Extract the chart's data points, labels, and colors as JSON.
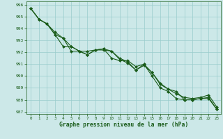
{
  "x": [
    0,
    1,
    2,
    3,
    4,
    5,
    6,
    7,
    8,
    9,
    10,
    11,
    12,
    13,
    14,
    15,
    16,
    17,
    18,
    19,
    20,
    21,
    22,
    23
  ],
  "series1": [
    995.7,
    994.8,
    994.4,
    993.5,
    992.5,
    992.5,
    992.1,
    991.8,
    992.2,
    992.2,
    992.1,
    991.4,
    991.1,
    990.5,
    991.0,
    990.3,
    989.3,
    988.9,
    988.7,
    988.0,
    988.0,
    988.1,
    988.1,
    987.2
  ],
  "series2": [
    995.7,
    994.8,
    994.4,
    993.7,
    993.2,
    992.1,
    992.1,
    991.8,
    992.2,
    992.3,
    991.5,
    991.3,
    991.3,
    990.8,
    991.0,
    990.0,
    989.0,
    988.7,
    988.1,
    988.0,
    988.0,
    988.1,
    988.2,
    987.2
  ],
  "series3": [
    995.7,
    994.8,
    994.4,
    993.5,
    993.2,
    992.5,
    992.1,
    992.1,
    992.2,
    992.3,
    992.1,
    991.5,
    991.2,
    990.5,
    990.9,
    990.3,
    989.4,
    988.9,
    988.5,
    988.2,
    988.1,
    988.2,
    988.4,
    987.4
  ],
  "ylim": [
    986.8,
    996.3
  ],
  "yticks": [
    987,
    988,
    989,
    990,
    991,
    992,
    993,
    994,
    995,
    996
  ],
  "xlim": [
    -0.5,
    23.5
  ],
  "xticks": [
    0,
    1,
    2,
    3,
    4,
    5,
    6,
    7,
    8,
    9,
    10,
    11,
    12,
    13,
    14,
    15,
    16,
    17,
    18,
    19,
    20,
    21,
    22,
    23
  ],
  "bg_color": "#cce8e8",
  "grid_color": "#99cccc",
  "line_color": "#1a5c1a",
  "marker_color": "#1a5c1a",
  "xlabel": "Graphe pression niveau de la mer (hPa)",
  "xlabel_color": "#1a5c1a",
  "tick_color": "#1a5c1a",
  "marker": "D",
  "markersize": 2.0,
  "linewidth": 0.8
}
